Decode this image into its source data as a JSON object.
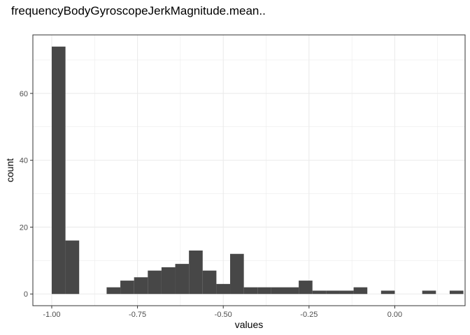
{
  "chart_data": {
    "type": "bar",
    "title": "frequencyBodyGyroscopeJerkMagnitude.mean..",
    "xlabel": "values",
    "ylabel": "count",
    "xlim": [
      -1.055,
      0.205
    ],
    "ylim": [
      -3.5,
      77.5
    ],
    "x_ticks": [
      -1.0,
      -0.75,
      -0.5,
      -0.25,
      0.0
    ],
    "x_tick_labels": [
      "-1.00",
      "-0.75",
      "-0.50",
      "-0.25",
      "0.00"
    ],
    "y_ticks": [
      0,
      20,
      40,
      60
    ],
    "y_tick_labels": [
      "0",
      "20",
      "40",
      "60"
    ],
    "bin_width": 0.04,
    "bin_start": -1.0,
    "values": [
      74,
      16,
      0,
      0,
      2,
      4,
      5,
      7,
      8,
      9,
      13,
      7,
      3,
      12,
      2,
      2,
      2,
      2,
      4,
      1,
      1,
      1,
      2,
      0,
      1,
      0,
      0,
      1,
      0,
      1
    ],
    "bar_color": "#474747",
    "panel_border_color": "#333333",
    "grid": true,
    "grid_color": "#ebebeb",
    "legend": "none"
  }
}
